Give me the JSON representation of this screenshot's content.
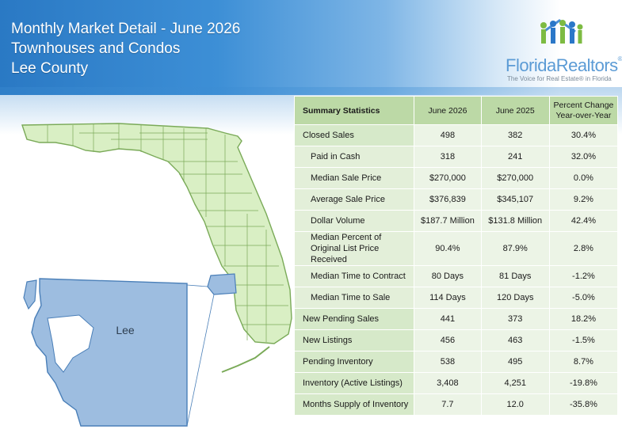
{
  "header": {
    "title": "Monthly Market Detail - June 2026",
    "subtitle": "Townhouses and Condos",
    "county": "Lee County"
  },
  "logo": {
    "name": "FloridaRealtors",
    "registered_mark": "®",
    "tagline": "The Voice for Real Estate® in Florida"
  },
  "map": {
    "highlight_label": "Lee",
    "state_fill": "#d9efc4",
    "state_stroke": "#7aaa58",
    "county_fill": "#9dbde0",
    "county_stroke": "#4a7fb8"
  },
  "table": {
    "headers": [
      "Summary Statistics",
      "June 2026",
      "June 2025",
      "Percent Change\nYear-over-Year"
    ],
    "rows": [
      {
        "label": "Closed Sales",
        "current": "498",
        "previous": "382",
        "change": "30.4%",
        "sub": false
      },
      {
        "label": "Paid in Cash",
        "current": "318",
        "previous": "241",
        "change": "32.0%",
        "sub": true
      },
      {
        "label": "Median Sale Price",
        "current": "$270,000",
        "previous": "$270,000",
        "change": "0.0%",
        "sub": true
      },
      {
        "label": "Average Sale Price",
        "current": "$376,839",
        "previous": "$345,107",
        "change": "9.2%",
        "sub": true
      },
      {
        "label": "Dollar Volume",
        "current": "$187.7 Million",
        "previous": "$131.8 Million",
        "change": "42.4%",
        "sub": true
      },
      {
        "label": "Median Percent of Original List Price Received",
        "current": "90.4%",
        "previous": "87.9%",
        "change": "2.8%",
        "sub": true
      },
      {
        "label": "Median Time to Contract",
        "current": "80 Days",
        "previous": "81 Days",
        "change": "-1.2%",
        "sub": true
      },
      {
        "label": "Median Time to Sale",
        "current": "114 Days",
        "previous": "120 Days",
        "change": "-5.0%",
        "sub": true
      },
      {
        "label": "New Pending Sales",
        "current": "441",
        "previous": "373",
        "change": "18.2%",
        "sub": false
      },
      {
        "label": "New Listings",
        "current": "456",
        "previous": "463",
        "change": "-1.5%",
        "sub": false
      },
      {
        "label": "Pending Inventory",
        "current": "538",
        "previous": "495",
        "change": "8.7%",
        "sub": false
      },
      {
        "label": "Inventory (Active Listings)",
        "current": "3,408",
        "previous": "4,251",
        "change": "-19.8%",
        "sub": false
      },
      {
        "label": "Months Supply of Inventory",
        "current": "7.7",
        "previous": "12.0",
        "change": "-35.8%",
        "sub": false
      }
    ]
  }
}
